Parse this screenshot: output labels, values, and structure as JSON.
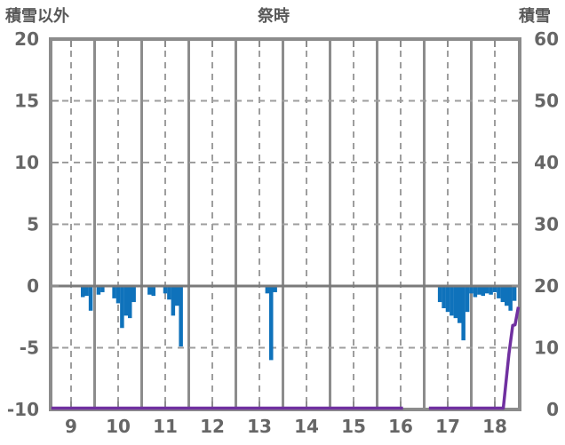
{
  "header": {
    "left_label": "積雪以外",
    "title": "祭時",
    "right_label": "積雪"
  },
  "chart_data": {
    "type": "bar+line",
    "title": "祭時",
    "xlabel": "",
    "ylabel_left": "積雪以外",
    "ylabel_right": "積雪",
    "x_axis": {
      "tick_labels": [
        9,
        10,
        11,
        12,
        13,
        14,
        15,
        16,
        17,
        18
      ],
      "range_hours": [
        8.58,
        18.53
      ],
      "major_grid": "dashed_at_hours",
      "minor_grid": "solid_at_half_hours"
    },
    "left_y_axis": {
      "label": "積雪以外",
      "ticks": [
        20,
        15,
        10,
        5,
        0,
        -5,
        -10
      ],
      "range": [
        -10,
        20
      ]
    },
    "right_y_axis": {
      "label": "積雪",
      "ticks": [
        60,
        50,
        40,
        30,
        20,
        10,
        0
      ],
      "range": [
        0,
        60
      ]
    },
    "bars": {
      "axis": "left",
      "interval_minutes": 5,
      "points": [
        [
          9.25,
          -0.9
        ],
        [
          9.333,
          -0.8
        ],
        [
          9.417,
          -2.0
        ],
        [
          9.583,
          -0.7
        ],
        [
          9.667,
          -0.5
        ],
        [
          9.917,
          -1.0
        ],
        [
          10.0,
          -1.4
        ],
        [
          10.083,
          -3.4
        ],
        [
          10.167,
          -2.4
        ],
        [
          10.25,
          -2.6
        ],
        [
          10.333,
          -1.3
        ],
        [
          10.667,
          -0.7
        ],
        [
          10.75,
          -0.8
        ],
        [
          11.0,
          -0.6
        ],
        [
          11.083,
          -1.1
        ],
        [
          11.167,
          -2.4
        ],
        [
          11.25,
          -1.6
        ],
        [
          11.333,
          -4.9
        ],
        [
          13.167,
          -0.6
        ],
        [
          13.25,
          -6.0
        ],
        [
          13.333,
          -0.5
        ],
        [
          16.833,
          -1.3
        ],
        [
          16.917,
          -1.8
        ],
        [
          17.0,
          -2.1
        ],
        [
          17.083,
          -2.4
        ],
        [
          17.167,
          -2.6
        ],
        [
          17.25,
          -3.0
        ],
        [
          17.333,
          -4.4
        ],
        [
          17.417,
          -2.1
        ],
        [
          17.5,
          -0.6
        ],
        [
          17.583,
          -0.9
        ],
        [
          17.667,
          -0.7
        ],
        [
          17.75,
          -0.8
        ],
        [
          17.833,
          -0.6
        ],
        [
          17.917,
          -0.7
        ],
        [
          18.0,
          -0.5
        ],
        [
          18.083,
          -1.0
        ],
        [
          18.167,
          -1.3
        ],
        [
          18.25,
          -1.6
        ],
        [
          18.333,
          -2.0
        ],
        [
          18.417,
          -1.2
        ]
      ]
    },
    "line": {
      "axis": "right",
      "note_gap_hours": [
        16.05,
        16.6
      ],
      "segments": [
        [
          [
            8.58,
            0
          ],
          [
            16.05,
            0
          ]
        ],
        [
          [
            16.6,
            0
          ],
          [
            18.18,
            0
          ],
          [
            18.3,
            8.8
          ],
          [
            18.38,
            13.4
          ],
          [
            18.43,
            13.5
          ],
          [
            18.5,
            16.4
          ]
        ]
      ]
    },
    "colors": {
      "bar": "#0f72bb",
      "line": "#7030a0",
      "spine": "#8c8c8c",
      "grid_dashed": "#9e9e9e",
      "grid_solid": "#8c8c8c",
      "zero_line": "#7a7a7a",
      "text": "#666666"
    }
  }
}
